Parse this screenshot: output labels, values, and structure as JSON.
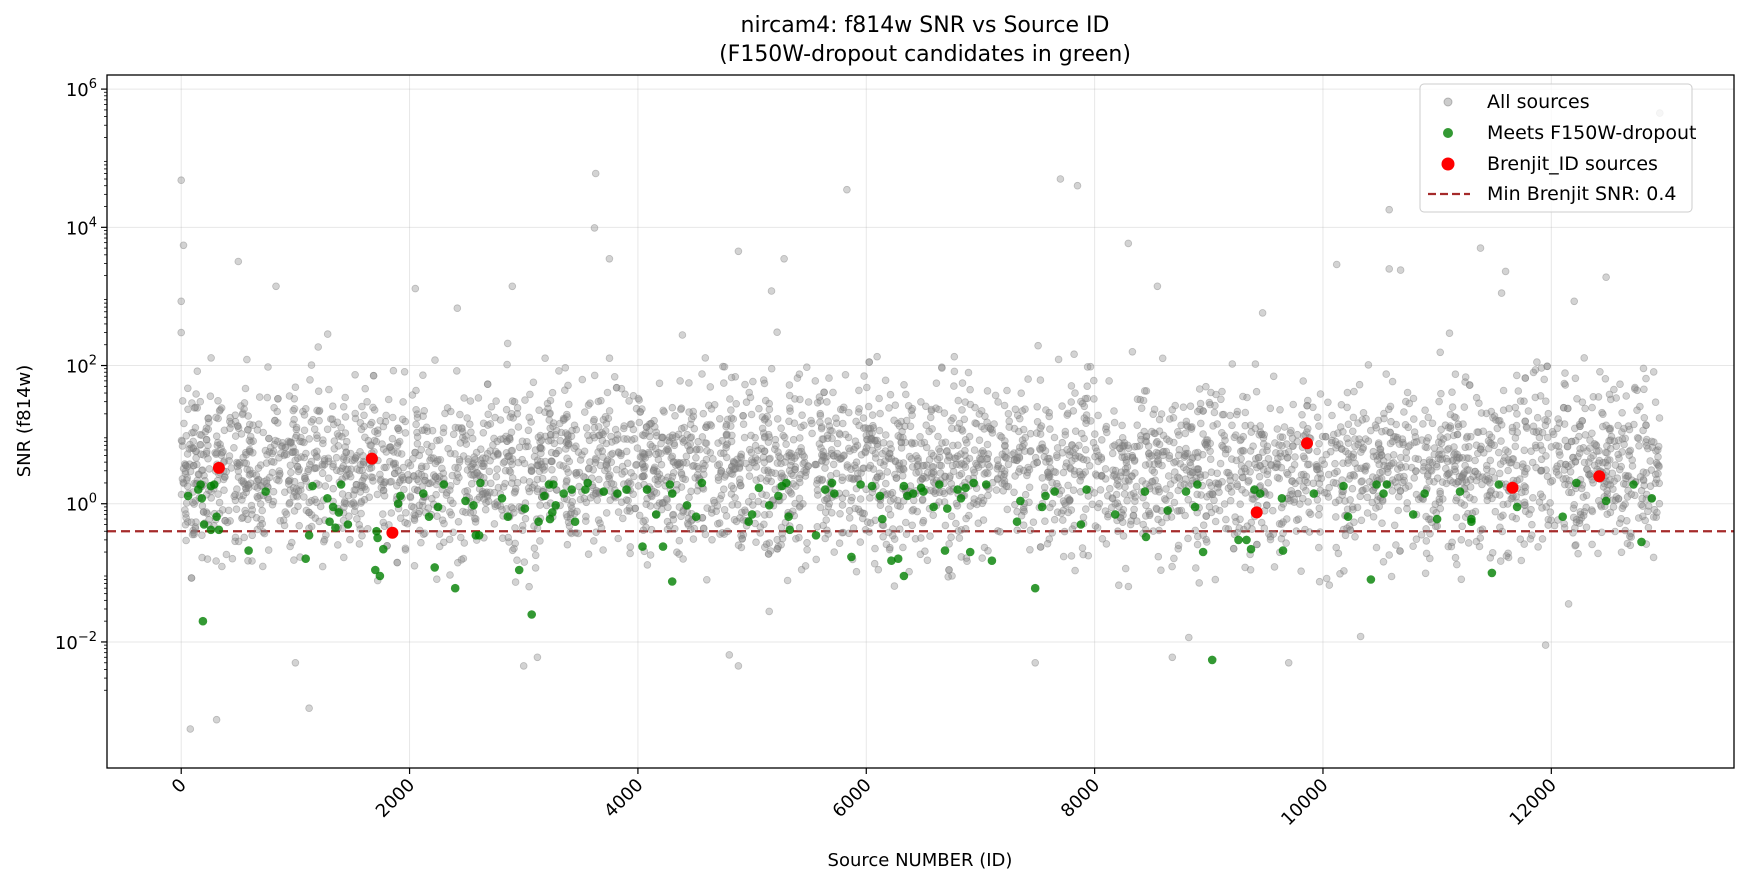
{
  "chart_data": {
    "type": "scatter",
    "title": "nircam4: f814w SNR vs Source ID",
    "subtitle": "(F150W-dropout candidates in green)",
    "xlabel": "Source NUMBER (ID)",
    "ylabel": "SNR (f814w)",
    "x_ticks": [
      "0",
      "2000",
      "4000",
      "6000",
      "8000",
      "10000",
      "12000"
    ],
    "y_ticks": [
      {
        "base": "10",
        "exp": "6"
      },
      {
        "base": "10",
        "exp": "4"
      },
      {
        "base": "10",
        "exp": "2"
      },
      {
        "base": "10",
        "exp": "0"
      },
      {
        "base": "10",
        "exp": "−2"
      }
    ],
    "x_tick_values": [
      0,
      2000,
      4000,
      6000,
      8000,
      10000,
      12000
    ],
    "y_tick_values": [
      1000000,
      10000,
      100,
      1,
      0.01
    ],
    "xlim": [
      -650,
      13600
    ],
    "ylim": [
      0.00015,
      1600000
    ],
    "y_scale": "log",
    "grid": true,
    "legend_position": "top-right",
    "colors": {
      "all_sources": "#808080",
      "dropout": "#008000",
      "brenjit": "#ff0000",
      "threshold": "#a52a2a"
    },
    "legend": [
      {
        "label": "All sources",
        "marker": "circle-small",
        "color": "#808080"
      },
      {
        "label": "Meets F150W-dropout",
        "marker": "circle",
        "color": "#008000"
      },
      {
        "label": "Brenjit_ID sources",
        "marker": "circle-large",
        "color": "#ff0000"
      },
      {
        "label": "Min Brenjit SNR: 0.4",
        "marker": "dashed-line",
        "color": "#a52a2a"
      }
    ],
    "threshold_line": {
      "name": "Min Brenjit SNR: 0.4",
      "y": 0.4
    },
    "series": [
      {
        "name": "All sources",
        "distribution": {
          "n_points": 4200,
          "id_range": [
            0,
            12950
          ],
          "median_snr": 3,
          "log10_sigma": 0.6
        },
        "notable_points": [
          {
            "x": 0,
            "y": 48000
          },
          {
            "x": 20,
            "y": 5500
          },
          {
            "x": 0,
            "y": 850
          },
          {
            "x": 0,
            "y": 300
          },
          {
            "x": 80,
            "y": 0.00055
          },
          {
            "x": 310,
            "y": 0.00075
          },
          {
            "x": 1120,
            "y": 0.0011
          },
          {
            "x": 500,
            "y": 3200
          },
          {
            "x": 830,
            "y": 1400
          },
          {
            "x": 2050,
            "y": 1300
          },
          {
            "x": 2900,
            "y": 1400
          },
          {
            "x": 3620,
            "y": 9800
          },
          {
            "x": 3630,
            "y": 60000
          },
          {
            "x": 3750,
            "y": 3500
          },
          {
            "x": 4880,
            "y": 4500
          },
          {
            "x": 5170,
            "y": 1200
          },
          {
            "x": 5280,
            "y": 3500
          },
          {
            "x": 5830,
            "y": 35000
          },
          {
            "x": 7700,
            "y": 50000
          },
          {
            "x": 7850,
            "y": 40000
          },
          {
            "x": 8550,
            "y": 1400
          },
          {
            "x": 10120,
            "y": 2900
          },
          {
            "x": 10580,
            "y": 18000
          },
          {
            "x": 10580,
            "y": 2500
          },
          {
            "x": 10680,
            "y": 2400
          },
          {
            "x": 11380,
            "y": 5000
          },
          {
            "x": 11600,
            "y": 2300
          },
          {
            "x": 12200,
            "y": 850
          },
          {
            "x": 12480,
            "y": 1900
          },
          {
            "x": 12950,
            "y": 450000
          },
          {
            "x": 1000,
            "y": 0.005
          },
          {
            "x": 3000,
            "y": 0.0045
          },
          {
            "x": 3120,
            "y": 0.006
          },
          {
            "x": 4800,
            "y": 0.0065
          },
          {
            "x": 4880,
            "y": 0.0045
          },
          {
            "x": 7480,
            "y": 0.005
          },
          {
            "x": 8680,
            "y": 0.006
          },
          {
            "x": 9700,
            "y": 0.005
          },
          {
            "x": 10330,
            "y": 0.012
          },
          {
            "x": 11950,
            "y": 0.009
          }
        ]
      },
      {
        "name": "Meets F150W-dropout",
        "points": [
          {
            "x": 60,
            "y": 1.3
          },
          {
            "x": 150,
            "y": 1.6
          },
          {
            "x": 170,
            "y": 1.9
          },
          {
            "x": 180,
            "y": 1.2
          },
          {
            "x": 200,
            "y": 0.5
          },
          {
            "x": 190,
            "y": 0.02
          },
          {
            "x": 260,
            "y": 0.42
          },
          {
            "x": 260,
            "y": 1.8
          },
          {
            "x": 290,
            "y": 1.9
          },
          {
            "x": 310,
            "y": 0.65
          },
          {
            "x": 330,
            "y": 0.42
          },
          {
            "x": 590,
            "y": 0.21
          },
          {
            "x": 740,
            "y": 1.5
          },
          {
            "x": 1090,
            "y": 0.16
          },
          {
            "x": 1120,
            "y": 0.35
          },
          {
            "x": 1150,
            "y": 1.8
          },
          {
            "x": 1280,
            "y": 1.2
          },
          {
            "x": 1300,
            "y": 0.55
          },
          {
            "x": 1330,
            "y": 0.9
          },
          {
            "x": 1350,
            "y": 0.45
          },
          {
            "x": 1380,
            "y": 0.75
          },
          {
            "x": 1400,
            "y": 1.9
          },
          {
            "x": 1460,
            "y": 0.5
          },
          {
            "x": 1700,
            "y": 0.11
          },
          {
            "x": 1710,
            "y": 0.4
          },
          {
            "x": 1720,
            "y": 0.32
          },
          {
            "x": 1740,
            "y": 0.09
          },
          {
            "x": 1770,
            "y": 0.22
          },
          {
            "x": 1900,
            "y": 1.0
          },
          {
            "x": 1920,
            "y": 1.3
          },
          {
            "x": 2120,
            "y": 1.4
          },
          {
            "x": 2170,
            "y": 0.65
          },
          {
            "x": 2220,
            "y": 0.12
          },
          {
            "x": 2250,
            "y": 0.9
          },
          {
            "x": 2300,
            "y": 1.9
          },
          {
            "x": 2400,
            "y": 0.06
          },
          {
            "x": 2490,
            "y": 1.1
          },
          {
            "x": 2560,
            "y": 0.95
          },
          {
            "x": 2580,
            "y": 0.35
          },
          {
            "x": 2610,
            "y": 0.35
          },
          {
            "x": 2620,
            "y": 2.0
          },
          {
            "x": 2810,
            "y": 1.2
          },
          {
            "x": 2860,
            "y": 0.65
          },
          {
            "x": 2960,
            "y": 0.11
          },
          {
            "x": 3010,
            "y": 0.85
          },
          {
            "x": 3070,
            "y": 0.025
          },
          {
            "x": 3130,
            "y": 0.55
          },
          {
            "x": 3180,
            "y": 1.3
          },
          {
            "x": 3220,
            "y": 1.9
          },
          {
            "x": 3230,
            "y": 0.6
          },
          {
            "x": 3250,
            "y": 0.75
          },
          {
            "x": 3260,
            "y": 1.9
          },
          {
            "x": 3280,
            "y": 0.95
          },
          {
            "x": 3350,
            "y": 1.4
          },
          {
            "x": 3420,
            "y": 1.6
          },
          {
            "x": 3450,
            "y": 0.55
          },
          {
            "x": 3540,
            "y": 1.6
          },
          {
            "x": 3560,
            "y": 2.0
          },
          {
            "x": 3700,
            "y": 1.5
          },
          {
            "x": 3820,
            "y": 1.4
          },
          {
            "x": 3900,
            "y": 1.6
          },
          {
            "x": 4040,
            "y": 0.24
          },
          {
            "x": 4080,
            "y": 1.6
          },
          {
            "x": 4160,
            "y": 0.7
          },
          {
            "x": 4220,
            "y": 0.24
          },
          {
            "x": 4280,
            "y": 1.9
          },
          {
            "x": 4300,
            "y": 1.4
          },
          {
            "x": 4300,
            "y": 0.075
          },
          {
            "x": 4430,
            "y": 0.95
          },
          {
            "x": 4510,
            "y": 0.65
          },
          {
            "x": 4560,
            "y": 2.0
          },
          {
            "x": 4970,
            "y": 0.55
          },
          {
            "x": 5000,
            "y": 0.7
          },
          {
            "x": 5060,
            "y": 1.7
          },
          {
            "x": 5150,
            "y": 0.95
          },
          {
            "x": 5230,
            "y": 1.3
          },
          {
            "x": 5260,
            "y": 1.8
          },
          {
            "x": 5300,
            "y": 2.0
          },
          {
            "x": 5320,
            "y": 0.65
          },
          {
            "x": 5330,
            "y": 0.42
          },
          {
            "x": 5560,
            "y": 0.35
          },
          {
            "x": 5640,
            "y": 1.6
          },
          {
            "x": 5700,
            "y": 2.0
          },
          {
            "x": 5720,
            "y": 1.4
          },
          {
            "x": 5870,
            "y": 0.17
          },
          {
            "x": 5950,
            "y": 1.9
          },
          {
            "x": 6050,
            "y": 1.8
          },
          {
            "x": 6120,
            "y": 1.3
          },
          {
            "x": 6140,
            "y": 0.6
          },
          {
            "x": 6220,
            "y": 0.15
          },
          {
            "x": 6280,
            "y": 0.16
          },
          {
            "x": 6330,
            "y": 0.09
          },
          {
            "x": 6330,
            "y": 1.8
          },
          {
            "x": 6360,
            "y": 1.3
          },
          {
            "x": 6410,
            "y": 1.4
          },
          {
            "x": 6480,
            "y": 1.7
          },
          {
            "x": 6500,
            "y": 1.5
          },
          {
            "x": 6590,
            "y": 0.9
          },
          {
            "x": 6640,
            "y": 1.9
          },
          {
            "x": 6690,
            "y": 0.21
          },
          {
            "x": 6710,
            "y": 0.85
          },
          {
            "x": 6800,
            "y": 1.6
          },
          {
            "x": 6830,
            "y": 1.2
          },
          {
            "x": 6870,
            "y": 1.7
          },
          {
            "x": 6910,
            "y": 0.2
          },
          {
            "x": 6940,
            "y": 2.0
          },
          {
            "x": 7050,
            "y": 1.9
          },
          {
            "x": 7100,
            "y": 0.15
          },
          {
            "x": 7320,
            "y": 0.55
          },
          {
            "x": 7350,
            "y": 1.1
          },
          {
            "x": 7480,
            "y": 0.06
          },
          {
            "x": 7540,
            "y": 0.9
          },
          {
            "x": 7570,
            "y": 1.3
          },
          {
            "x": 7650,
            "y": 1.5
          },
          {
            "x": 7880,
            "y": 0.5
          },
          {
            "x": 7930,
            "y": 1.6
          },
          {
            "x": 8180,
            "y": 0.7
          },
          {
            "x": 8440,
            "y": 1.5
          },
          {
            "x": 8450,
            "y": 0.33
          },
          {
            "x": 8640,
            "y": 0.8
          },
          {
            "x": 8800,
            "y": 1.5
          },
          {
            "x": 8880,
            "y": 0.9
          },
          {
            "x": 8900,
            "y": 1.9
          },
          {
            "x": 8950,
            "y": 0.2
          },
          {
            "x": 9030,
            "y": 0.0055
          },
          {
            "x": 9260,
            "y": 0.3
          },
          {
            "x": 9330,
            "y": 0.3
          },
          {
            "x": 9370,
            "y": 0.22
          },
          {
            "x": 9400,
            "y": 1.6
          },
          {
            "x": 9450,
            "y": 1.4
          },
          {
            "x": 9640,
            "y": 1.2
          },
          {
            "x": 9650,
            "y": 0.21
          },
          {
            "x": 9920,
            "y": 1.4
          },
          {
            "x": 10180,
            "y": 1.8
          },
          {
            "x": 10220,
            "y": 0.65
          },
          {
            "x": 10420,
            "y": 0.08
          },
          {
            "x": 10470,
            "y": 1.9
          },
          {
            "x": 10560,
            "y": 1.9
          },
          {
            "x": 10530,
            "y": 1.4
          },
          {
            "x": 10790,
            "y": 0.7
          },
          {
            "x": 10890,
            "y": 1.4
          },
          {
            "x": 11000,
            "y": 0.6
          },
          {
            "x": 11200,
            "y": 1.5
          },
          {
            "x": 11300,
            "y": 0.55
          },
          {
            "x": 11300,
            "y": 0.6
          },
          {
            "x": 11480,
            "y": 0.1
          },
          {
            "x": 11540,
            "y": 1.9
          },
          {
            "x": 11700,
            "y": 0.9
          },
          {
            "x": 12100,
            "y": 0.65
          },
          {
            "x": 12220,
            "y": 2.0
          },
          {
            "x": 12480,
            "y": 1.1
          },
          {
            "x": 12720,
            "y": 1.9
          },
          {
            "x": 12790,
            "y": 0.28
          },
          {
            "x": 12880,
            "y": 1.2
          }
        ]
      },
      {
        "name": "Brenjit_ID sources",
        "points": [
          {
            "x": 330,
            "y": 3.3
          },
          {
            "x": 1670,
            "y": 4.5
          },
          {
            "x": 1850,
            "y": 0.38
          },
          {
            "x": 9420,
            "y": 0.75
          },
          {
            "x": 9860,
            "y": 7.5
          },
          {
            "x": 11660,
            "y": 1.7
          },
          {
            "x": 12420,
            "y": 2.5
          }
        ]
      }
    ]
  }
}
